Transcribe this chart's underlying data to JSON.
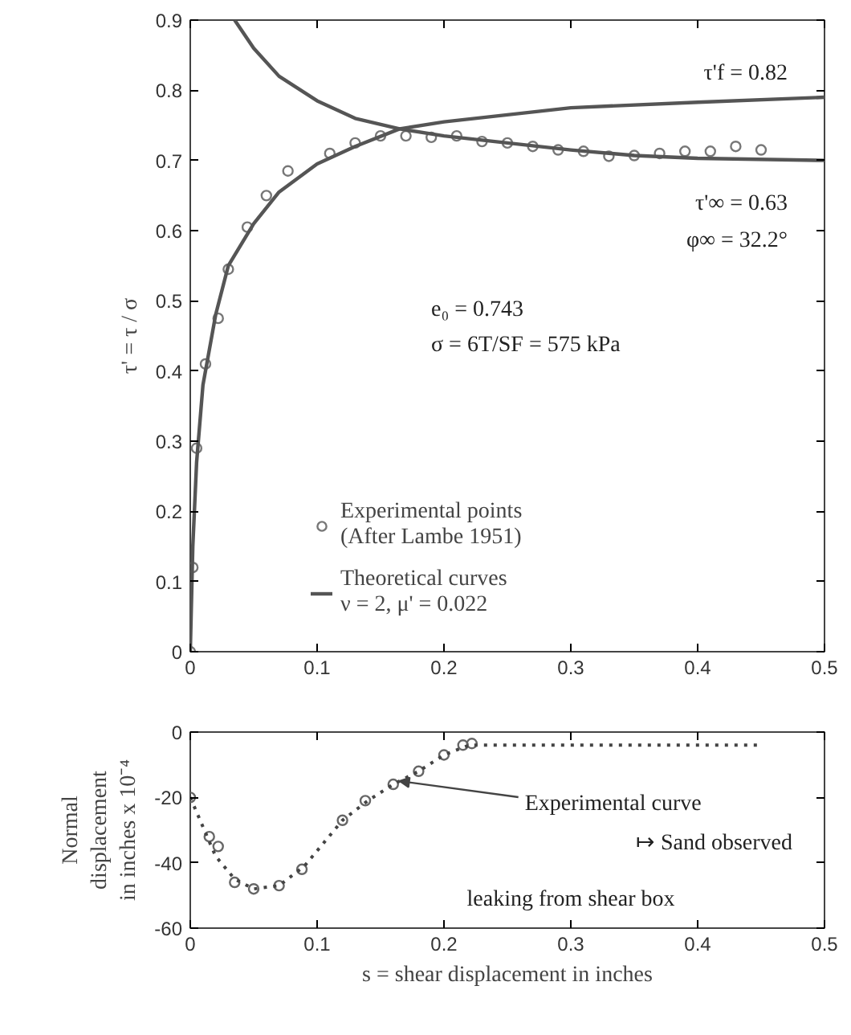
{
  "chart_data": [
    {
      "type": "line",
      "ylabel": "τ' = τ / σ",
      "xlim": [
        0,
        0.5
      ],
      "ylim": [
        0,
        0.9
      ],
      "xticks": [
        0,
        0.1,
        0.2,
        0.3,
        0.4,
        0.5
      ],
      "yticks": [
        0,
        0.1,
        0.2,
        0.3,
        0.4,
        0.5,
        0.6,
        0.7,
        0.8,
        0.9
      ],
      "grid": false,
      "legend": "bottom",
      "series": [
        {
          "type": "scatter",
          "marker": "circle",
          "name": "Experimental points\n(After Lambe 1951)",
          "color": "#777777",
          "x": [
            0,
            0.002,
            0.005,
            0.012,
            0.022,
            0.03,
            0.045,
            0.06,
            0.077,
            0.11,
            0.13,
            0.15,
            0.17,
            0.19,
            0.21,
            0.23,
            0.25,
            0.27,
            0.29,
            0.31,
            0.33,
            0.35,
            0.37,
            0.39,
            0.41,
            0.43,
            0.45
          ],
          "values": [
            0,
            0.12,
            0.29,
            0.41,
            0.475,
            0.545,
            0.605,
            0.65,
            0.685,
            0.71,
            0.725,
            0.735,
            0.735,
            0.733,
            0.735,
            0.727,
            0.725,
            0.72,
            0.715,
            0.713,
            0.706,
            0.707,
            0.71,
            0.713,
            0.713,
            0.72,
            0.715
          ]
        },
        {
          "name": "Theoretical curves\nν = 2, μ' = 0.022",
          "color": "#555555",
          "x": [
            0,
            0.002,
            0.005,
            0.01,
            0.02,
            0.03,
            0.05,
            0.07,
            0.1,
            0.13,
            0.165,
            0.2,
            0.25,
            0.3,
            0.4,
            0.5
          ],
          "values": [
            0,
            0.15,
            0.27,
            0.38,
            0.48,
            0.55,
            0.61,
            0.655,
            0.695,
            0.72,
            0.745,
            0.755,
            0.765,
            0.775,
            0.783,
            0.79
          ]
        },
        {
          "color": "#555555",
          "x": [
            0.035,
            0.05,
            0.07,
            0.1,
            0.13,
            0.165,
            0.2,
            0.25,
            0.3,
            0.35,
            0.4,
            0.5
          ],
          "values": [
            0.9,
            0.86,
            0.82,
            0.785,
            0.76,
            0.745,
            0.735,
            0.725,
            0.715,
            0.707,
            0.703,
            0.7
          ]
        }
      ],
      "annotations": [
        "τ'f = 0.82",
        "τ'∞ = 0.63",
        "φ∞ = 32.2°",
        "e₀ = 0.743",
        "σ  =  6T/SF = 575 kPa"
      ]
    },
    {
      "type": "line",
      "xlabel": "s = shear displacement in inches",
      "ylabel": "Normal\ndisplacement\nin inches x 10⁻⁴",
      "xlim": [
        0,
        0.5
      ],
      "ylim": [
        -60,
        0
      ],
      "xticks": [
        0,
        0.1,
        0.2,
        0.3,
        0.4,
        0.5
      ],
      "yticks": [
        -60,
        -40,
        -20,
        0
      ],
      "grid": false,
      "series": [
        {
          "type": "scatter",
          "marker": "circle",
          "color": "#666666",
          "x": [
            0,
            0.015,
            0.022,
            0.035,
            0.05,
            0.07,
            0.088,
            0.12,
            0.138,
            0.16,
            0.18,
            0.2,
            0.215,
            0.222
          ],
          "values": [
            -20,
            -32,
            -35,
            -46,
            -48,
            -47,
            -42,
            -27,
            -21,
            -16,
            -12,
            -7,
            -4,
            -3.5
          ]
        },
        {
          "line_style": "dotted",
          "color": "#444444",
          "x": [
            0,
            0.01,
            0.02,
            0.035,
            0.05,
            0.07,
            0.09,
            0.12,
            0.14,
            0.16,
            0.18,
            0.2,
            0.22,
            0.25,
            0.3,
            0.35,
            0.4,
            0.45
          ],
          "values": [
            -20,
            -29,
            -38,
            -45,
            -48,
            -47,
            -41,
            -27,
            -21,
            -16,
            -12,
            -7,
            -4,
            -4,
            -4,
            -4,
            -4,
            -4
          ]
        }
      ],
      "annotations": [
        {
          "text": "Experimental curve",
          "x": 0.165,
          "y": -15
        },
        "↦ Sand observed",
        "leaking from shear box"
      ]
    }
  ]
}
